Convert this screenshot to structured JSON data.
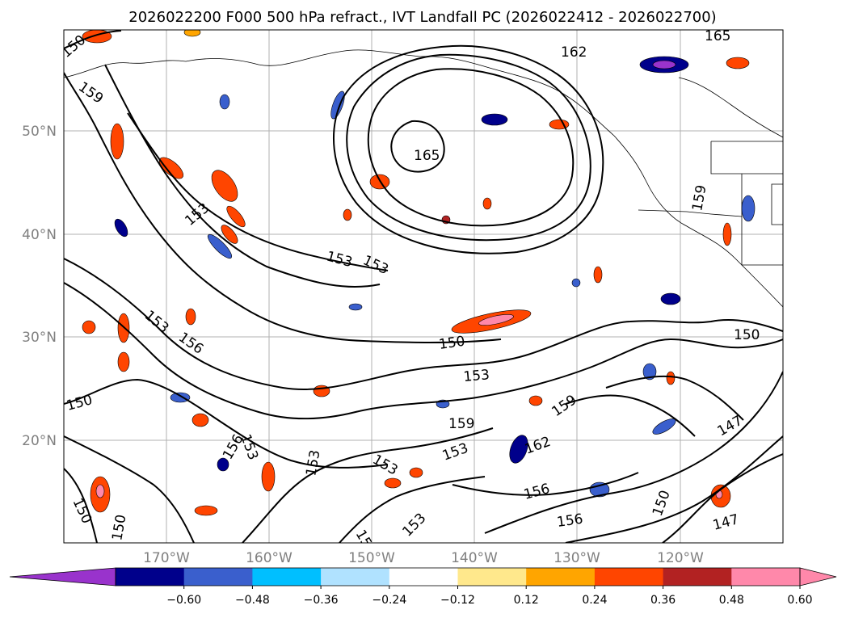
{
  "title": "2026022200 F000 500 hPa refract., IVT Landfall PC (2026022412 - 2026022700)",
  "map": {
    "lat_ticks": [
      {
        "label": "50°N",
        "value": 50
      },
      {
        "label": "40°N",
        "value": 40
      },
      {
        "label": "30°N",
        "value": 30
      },
      {
        "label": "20°N",
        "value": 20
      }
    ],
    "lon_ticks": [
      {
        "label": "170°W",
        "value": -170
      },
      {
        "label": "160°W",
        "value": -160
      },
      {
        "label": "150°W",
        "value": -150
      },
      {
        "label": "140°W",
        "value": -140
      },
      {
        "label": "130°W",
        "value": -130
      },
      {
        "label": "120°W",
        "value": -120
      }
    ],
    "contour_labels": [
      "165",
      "162",
      "150",
      "159",
      "165",
      "153",
      "153",
      "153",
      "153",
      "156",
      "150",
      "150",
      "153",
      "159",
      "153",
      "150",
      "159",
      "162",
      "153",
      "156",
      "156",
      "150",
      "147",
      "147",
      "150",
      "150",
      "156",
      "159",
      "153",
      "153",
      "153",
      "159"
    ]
  },
  "colorbar": {
    "ticks": [
      "−0.60",
      "−0.48",
      "−0.36",
      "−0.24",
      "−0.12",
      "0.12",
      "0.24",
      "0.36",
      "0.48",
      "0.60"
    ],
    "colors": [
      "#9933cc",
      "#00008b",
      "#3a5fcd",
      "#00bfff",
      "#b0e2ff",
      "#ffffff",
      "#ffe88c",
      "#ffa500",
      "#ff4500",
      "#b22222",
      "#ff88aa",
      "#ff88aa"
    ]
  }
}
